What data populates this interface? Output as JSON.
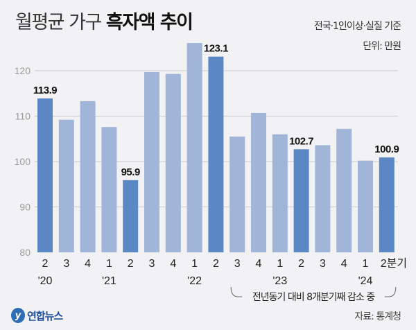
{
  "title_light": "월평균 가구",
  "title_bold": "흑자액 추이",
  "subtitle": "전국·1인이상·실질 기준",
  "unit": "단위: 만원",
  "source": "자료: 통계청",
  "logo": "연합뉴스",
  "chart_data": {
    "type": "bar",
    "title": "월평균 가구 흑자액 추이",
    "unit": "만원",
    "categories": [
      "2",
      "3",
      "4",
      "1",
      "2",
      "3",
      "4",
      "1",
      "2",
      "3",
      "4",
      "1",
      "2",
      "3",
      "4",
      "1",
      "2분기"
    ],
    "year_labels": [
      {
        "index": 0,
        "label": "'20"
      },
      {
        "index": 3,
        "label": "'21"
      },
      {
        "index": 7,
        "label": "'22"
      },
      {
        "index": 11,
        "label": "'23"
      },
      {
        "index": 15,
        "label": "'24"
      }
    ],
    "values": [
      113.9,
      109.2,
      113.3,
      107.6,
      95.9,
      119.7,
      119.3,
      126.1,
      123.1,
      105.5,
      110.7,
      106.0,
      102.7,
      103.6,
      107.2,
      100.2,
      100.9
    ],
    "highlighted": [
      0,
      4,
      8,
      12,
      16
    ],
    "data_labels": {
      "0": "113.9",
      "4": "95.9",
      "8": "123.1",
      "12": "102.7",
      "16": "100.9"
    },
    "ylim": [
      80,
      128
    ],
    "yticks": [
      80,
      90,
      100,
      110,
      120
    ],
    "grid": true,
    "annotation": {
      "text": "전년동기 대비 8개분기째 감소 중",
      "from_index": 9,
      "to_index": 16
    },
    "colors": {
      "highlight": "#5b87c5",
      "normal": "#a0b5d7",
      "grid": "#c9c9cc",
      "tick": "#9a9a9a"
    }
  }
}
